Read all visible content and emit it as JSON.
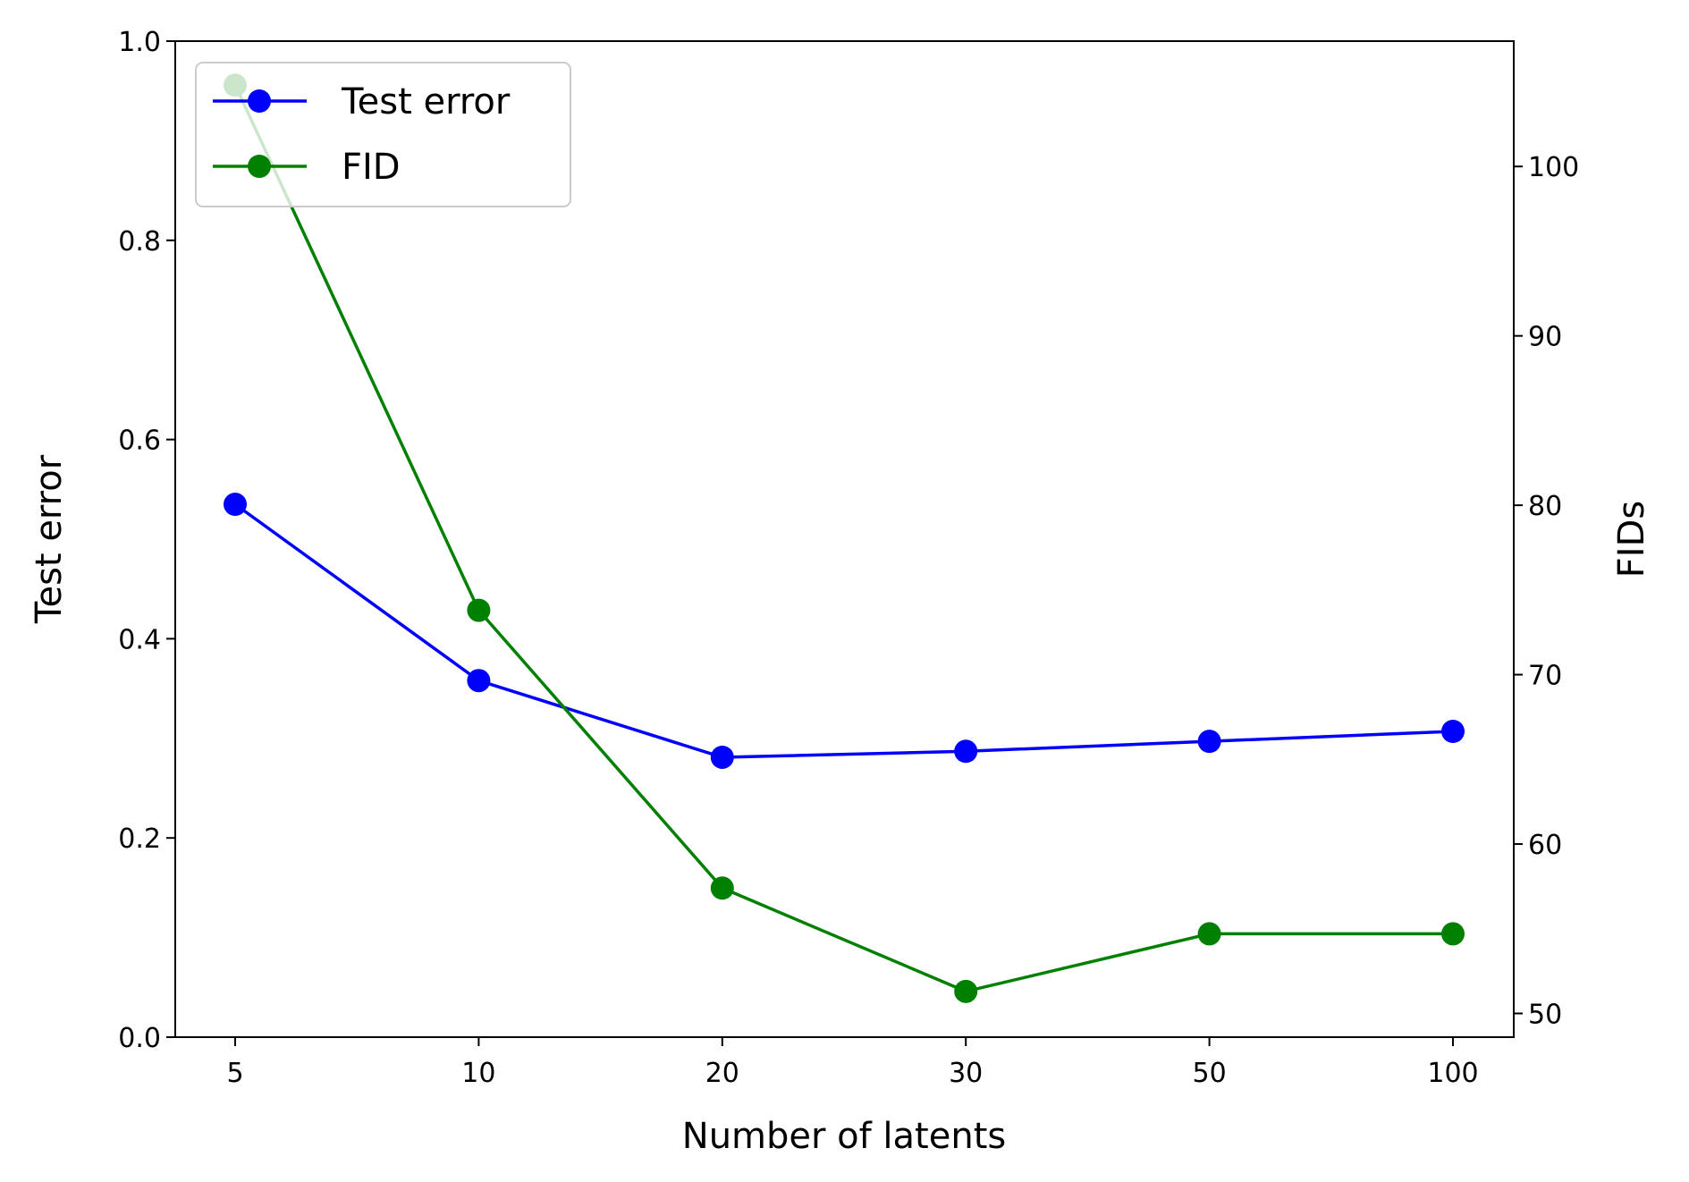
{
  "chart_data": {
    "type": "line",
    "categories": [
      "5",
      "10",
      "20",
      "30",
      "50",
      "100"
    ],
    "xlabel": "Number of latents",
    "ylabel": "Test error",
    "ylabel_right": "FIDs",
    "ylim": [
      0,
      1.0
    ],
    "ylim_right": [
      48.6,
      107.4
    ],
    "yticks": [
      "0.0",
      "0.2",
      "0.4",
      "0.6",
      "0.8",
      "1.0"
    ],
    "yticks_right": [
      "50",
      "60",
      "70",
      "80",
      "90",
      "100"
    ],
    "grid": false,
    "legend_position": "top-left",
    "series": [
      {
        "name": "Test error",
        "axis": "left",
        "color": "#0000ff",
        "values": [
          0.535,
          0.358,
          0.281,
          0.287,
          0.297,
          0.307
        ]
      },
      {
        "name": "FID",
        "axis": "right",
        "color": "#008000",
        "values": [
          104.8,
          73.8,
          57.4,
          51.3,
          54.7,
          54.7
        ]
      }
    ]
  }
}
